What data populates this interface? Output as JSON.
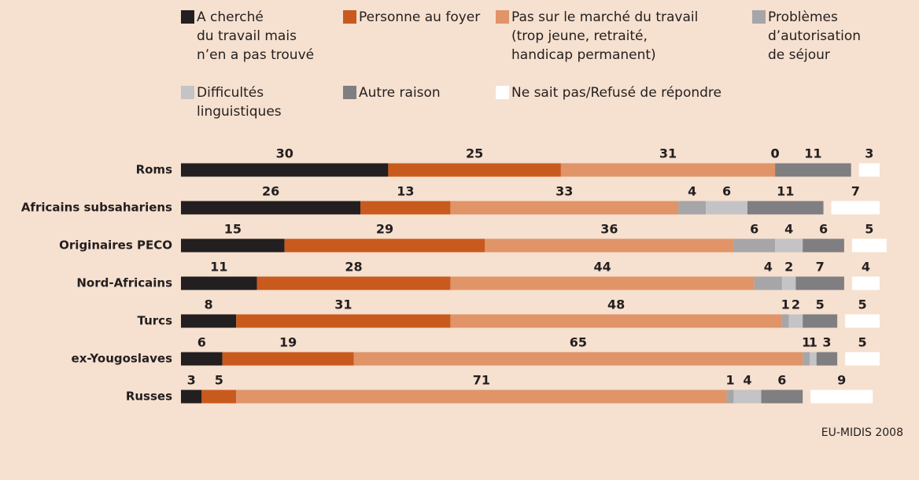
{
  "chart_data": {
    "type": "stacked_bar_horizontal",
    "categories": [
      "Roms",
      "Africains subsahariens",
      "Originaires PECO",
      "Nord-Africains",
      "Turcs",
      "ex-Yougoslaves",
      "Russes"
    ],
    "series": [
      {
        "name": "A cherché\ndu travail mais\nn’en a pas trouvé",
        "color": "#231f20",
        "values": [
          30,
          26,
          15,
          11,
          8,
          6,
          3
        ]
      },
      {
        "name": "Personne au foyer",
        "color": "#c85a1e",
        "values": [
          25,
          13,
          29,
          28,
          31,
          19,
          5
        ]
      },
      {
        "name": "Pas sur le marché du travail\n(trop jeune, retraité,\nhandicap permanent)",
        "color": "#e09468",
        "values": [
          31,
          33,
          36,
          44,
          48,
          65,
          71
        ]
      },
      {
        "name": "Problèmes\nd’autorisation\nde séjour",
        "color": "#a6a5a8",
        "values": [
          0,
          4,
          6,
          4,
          1,
          1,
          1
        ]
      },
      {
        "name": "Difficultés\nlinguistiques",
        "color": "#c4c3c6",
        "values": [
          0,
          6,
          4,
          2,
          2,
          1,
          4
        ]
      },
      {
        "name": "Autre raison",
        "color": "#7f7e81",
        "values": [
          11,
          11,
          6,
          7,
          5,
          3,
          6
        ]
      },
      {
        "name": "Ne sait pas/Refusé de répondre",
        "color": "#ffffff",
        "values": [
          3,
          7,
          5,
          4,
          5,
          5,
          9
        ]
      }
    ],
    "source": "EU-MIDIS 2008"
  }
}
